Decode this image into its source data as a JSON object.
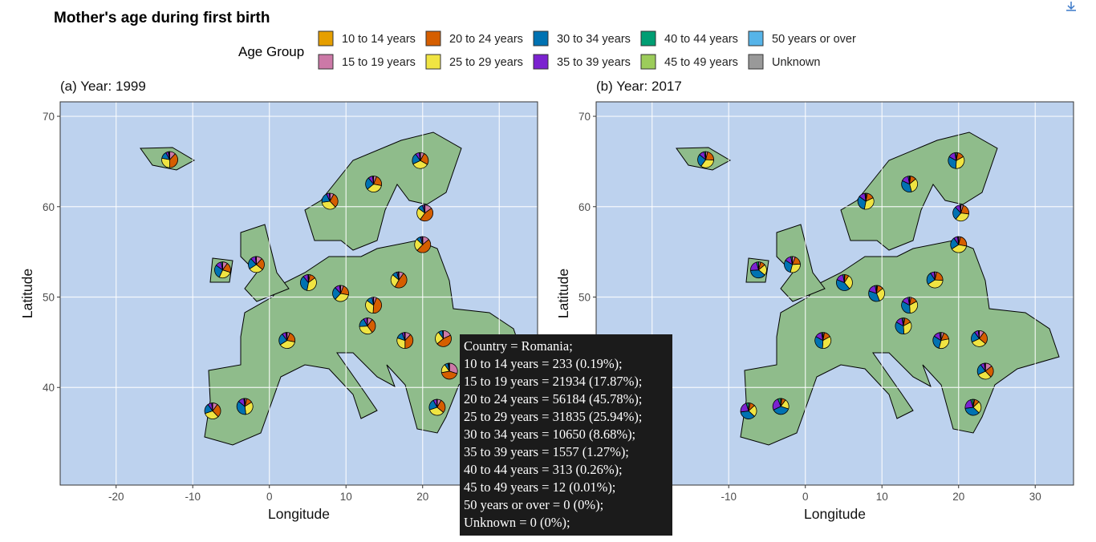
{
  "title": "Mother's age during first birth",
  "legend": {
    "title": "Age Group",
    "items": [
      {
        "name": "10 to 14 years",
        "color": "#E69F00"
      },
      {
        "name": "15 to 19 years",
        "color": "#CC79A7"
      },
      {
        "name": "20 to 24 years",
        "color": "#D55E00"
      },
      {
        "name": "25 to 29 years",
        "color": "#F0E442"
      },
      {
        "name": "30 to 34 years",
        "color": "#0072B2"
      },
      {
        "name": "35 to 39 years",
        "color": "#7B22D0"
      },
      {
        "name": "40 to 44 years",
        "color": "#009E73"
      },
      {
        "name": "45 to 49 years",
        "color": "#9CCC5A"
      },
      {
        "name": "50 years or over",
        "color": "#56B4E9"
      },
      {
        "name": "Unknown",
        "color": "#999999"
      }
    ]
  },
  "chart_data": [
    {
      "type": "pie-map",
      "subtitle": "(a) Year: 1999",
      "xlabel": "Longitude",
      "ylabel": "Latitude",
      "xlim": [
        -27.3,
        35
      ],
      "ylim": [
        29.2,
        71.6
      ],
      "xticks": [
        -20,
        -10,
        0,
        10,
        20,
        30
      ],
      "yticks": [
        40,
        50,
        60,
        70
      ],
      "grid": true,
      "pies": [
        {
          "x": -13,
          "y": 65.2,
          "values": [
            0,
            12,
            38,
            28,
            14,
            5,
            2,
            0,
            0,
            1
          ]
        },
        {
          "x": 19.7,
          "y": 65.1,
          "values": [
            0,
            8,
            25,
            35,
            22,
            8,
            2,
            0,
            0,
            0
          ]
        },
        {
          "x": 13.6,
          "y": 62.5,
          "values": [
            0,
            6,
            22,
            36,
            25,
            9,
            2,
            0,
            0,
            0
          ]
        },
        {
          "x": 7.9,
          "y": 60.6,
          "values": [
            0,
            8,
            30,
            35,
            20,
            6,
            1,
            0,
            0,
            0
          ]
        },
        {
          "x": 20.3,
          "y": 59.3,
          "values": [
            0,
            15,
            45,
            25,
            10,
            4,
            1,
            0,
            0,
            0
          ]
        },
        {
          "x": 20,
          "y": 55.8,
          "values": [
            0,
            14,
            48,
            25,
            9,
            3,
            1,
            0,
            0,
            0
          ]
        },
        {
          "x": -6.1,
          "y": 53,
          "values": [
            0,
            10,
            20,
            27,
            28,
            12,
            3,
            0,
            0,
            0
          ]
        },
        {
          "x": -1.7,
          "y": 53.6,
          "values": [
            0,
            12,
            24,
            30,
            22,
            10,
            2,
            0,
            0,
            0
          ]
        },
        {
          "x": 5.1,
          "y": 51.6,
          "values": [
            0,
            3,
            12,
            38,
            36,
            10,
            1,
            0,
            0,
            0
          ]
        },
        {
          "x": 9.3,
          "y": 50.4,
          "values": [
            0,
            6,
            22,
            34,
            26,
            10,
            2,
            0,
            0,
            0
          ]
        },
        {
          "x": 16.9,
          "y": 51.9,
          "values": [
            0,
            10,
            48,
            28,
            10,
            3,
            1,
            0,
            0,
            0
          ]
        },
        {
          "x": 2.3,
          "y": 45.2,
          "values": [
            0,
            6,
            22,
            38,
            24,
            8,
            2,
            0,
            0,
            0
          ]
        },
        {
          "x": -3.2,
          "y": 37.9,
          "values": [
            0,
            4,
            12,
            32,
            38,
            12,
            2,
            0,
            0,
            0
          ]
        },
        {
          "x": -7.4,
          "y": 37.4,
          "values": [
            0,
            10,
            28,
            32,
            20,
            8,
            2,
            0,
            0,
            0
          ]
        },
        {
          "x": 13.6,
          "y": 49.1,
          "values": [
            0,
            6,
            45,
            34,
            12,
            3,
            0,
            0,
            0,
            0
          ]
        },
        {
          "x": 17.7,
          "y": 45.2,
          "values": [
            0,
            12,
            38,
            30,
            14,
            5,
            1,
            0,
            0,
            0
          ]
        },
        {
          "x": 22.7,
          "y": 45.4,
          "values": [
            233,
            21934,
            56184,
            31835,
            10650,
            1557,
            313,
            12,
            0,
            0
          ]
        },
        {
          "x": 23.5,
          "y": 41.8,
          "values": [
            0,
            30,
            42,
            18,
            7,
            2,
            1,
            0,
            0,
            0
          ]
        },
        {
          "x": 21.9,
          "y": 37.8,
          "values": [
            0,
            8,
            28,
            34,
            22,
            7,
            1,
            0,
            0,
            0
          ]
        },
        {
          "x": 12.8,
          "y": 46.8,
          "values": [
            0,
            10,
            30,
            34,
            18,
            7,
            1,
            0,
            0,
            0
          ]
        }
      ]
    },
    {
      "type": "pie-map",
      "subtitle": "(b) Year: 2017",
      "xlabel": "Longitude",
      "ylabel": "Latitude",
      "xlim": [
        -27.3,
        35
      ],
      "ylim": [
        29.2,
        71.6
      ],
      "xticks": [
        -20,
        -10,
        0,
        10,
        20,
        30
      ],
      "yticks": [
        40,
        50,
        60,
        70
      ],
      "grid": true,
      "pies": [
        {
          "x": -13,
          "y": 65.2,
          "values": [
            0,
            4,
            22,
            34,
            26,
            11,
            3,
            0,
            0,
            0
          ]
        },
        {
          "x": 19.7,
          "y": 65.1,
          "values": [
            0,
            3,
            14,
            34,
            32,
            14,
            3,
            0,
            0,
            0
          ]
        },
        {
          "x": 13.6,
          "y": 62.5,
          "values": [
            0,
            2,
            12,
            32,
            36,
            15,
            3,
            0,
            0,
            0
          ]
        },
        {
          "x": 7.9,
          "y": 60.6,
          "values": [
            0,
            3,
            15,
            35,
            32,
            13,
            2,
            0,
            0,
            0
          ]
        },
        {
          "x": 20.3,
          "y": 59.3,
          "values": [
            0,
            5,
            22,
            34,
            27,
            10,
            2,
            0,
            0,
            0
          ]
        },
        {
          "x": 20,
          "y": 55.8,
          "values": [
            0,
            4,
            24,
            38,
            24,
            8,
            2,
            0,
            0,
            0
          ]
        },
        {
          "x": -6.1,
          "y": 53,
          "values": [
            0,
            4,
            10,
            22,
            38,
            22,
            4,
            0,
            0,
            0
          ]
        },
        {
          "x": -1.7,
          "y": 53.6,
          "values": [
            0,
            6,
            18,
            30,
            30,
            13,
            3,
            0,
            0,
            0
          ]
        },
        {
          "x": 5.1,
          "y": 51.6,
          "values": [
            0,
            1,
            8,
            30,
            42,
            16,
            3,
            0,
            0,
            0
          ]
        },
        {
          "x": 9.3,
          "y": 50.4,
          "values": [
            0,
            2,
            12,
            30,
            36,
            17,
            3,
            0,
            0,
            0
          ]
        },
        {
          "x": 16.9,
          "y": 51.9,
          "values": [
            0,
            4,
            22,
            40,
            25,
            8,
            1,
            0,
            0,
            0
          ]
        },
        {
          "x": 2.3,
          "y": 45.2,
          "values": [
            0,
            3,
            14,
            34,
            32,
            14,
            3,
            0,
            0,
            0
          ]
        },
        {
          "x": -3.2,
          "y": 37.9,
          "values": [
            0,
            2,
            8,
            20,
            38,
            26,
            6,
            0,
            0,
            0
          ]
        },
        {
          "x": -7.4,
          "y": 37.4,
          "values": [
            0,
            3,
            10,
            24,
            36,
            22,
            5,
            0,
            0,
            0
          ]
        },
        {
          "x": 13.6,
          "y": 49.1,
          "values": [
            0,
            3,
            14,
            32,
            34,
            14,
            3,
            0,
            0,
            0
          ]
        },
        {
          "x": 17.7,
          "y": 45.2,
          "values": [
            0,
            6,
            16,
            32,
            30,
            13,
            3,
            0,
            0,
            0
          ]
        },
        {
          "x": 22.7,
          "y": 45.4,
          "values": [
            0,
            10,
            26,
            32,
            22,
            8,
            2,
            0,
            0,
            0
          ]
        },
        {
          "x": 23.5,
          "y": 41.8,
          "values": [
            0,
            14,
            24,
            30,
            22,
            8,
            2,
            0,
            0,
            0
          ]
        },
        {
          "x": 21.9,
          "y": 37.8,
          "values": [
            0,
            3,
            10,
            24,
            36,
            22,
            5,
            0,
            0,
            0
          ]
        },
        {
          "x": 12.8,
          "y": 46.8,
          "values": [
            0,
            3,
            14,
            32,
            34,
            14,
            3,
            0,
            0,
            0
          ]
        }
      ]
    }
  ],
  "tooltip": {
    "lines": [
      "Country = Romania;",
      "10 to 14 years = 233 (0.19%);",
      "15 to 19 years = 21934 (17.87%);",
      "20 to 24 years = 56184 (45.78%);",
      "25 to 29 years = 31835 (25.94%);",
      "30 to 34 years = 10650 (8.68%);",
      "35 to 39 years = 1557 (1.27%);",
      "40 to 44 years = 313 (0.26%);",
      "45 to 49 years = 12 (0.01%);",
      "50 years or over = 0 (0%);",
      "Unknown = 0 (0%);"
    ]
  }
}
